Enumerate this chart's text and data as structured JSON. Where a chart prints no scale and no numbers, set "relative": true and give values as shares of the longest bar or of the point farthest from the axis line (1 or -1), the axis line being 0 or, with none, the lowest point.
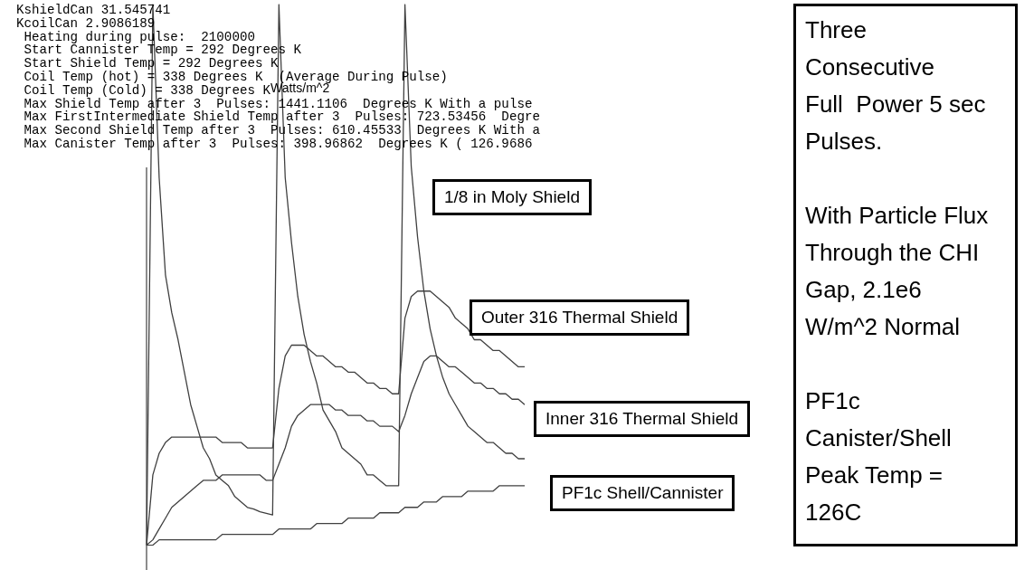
{
  "chart_data": {
    "type": "line",
    "relative": true,
    "marker": "none",
    "grid": false,
    "legend": false,
    "categories": [
      null,
      null,
      null,
      null,
      null,
      null,
      null,
      null,
      null,
      null,
      null,
      null,
      null,
      null,
      null,
      null,
      null,
      null,
      null,
      null,
      null,
      null,
      null,
      null,
      null,
      null,
      null,
      null,
      null,
      null,
      null,
      null,
      null,
      null,
      null,
      null,
      null,
      null,
      null,
      null,
      null,
      null,
      null,
      null,
      null,
      null,
      null,
      null,
      null,
      null,
      null,
      null,
      null,
      null,
      null,
      null,
      null,
      null,
      null,
      null,
      null
    ],
    "series": [
      {
        "name": "1/8 in Moly Shield",
        "color": "#404040",
        "values": [
          0,
          1.0,
          0.68,
          0.5,
          0.43,
          0.38,
          0.32,
          0.26,
          0.22,
          0.18,
          0.16,
          0.13,
          0.12,
          0.11,
          0.09,
          0.08,
          0.07,
          0.067,
          0.062,
          0.059,
          0.056,
          1.0,
          0.68,
          0.56,
          0.46,
          0.39,
          0.34,
          0.3,
          0.25,
          0.23,
          0.21,
          0.18,
          0.17,
          0.16,
          0.15,
          0.13,
          0.13,
          0.12,
          0.11,
          0.11,
          0.11,
          1.0,
          0.7,
          0.57,
          0.47,
          0.4,
          0.35,
          0.31,
          0.28,
          0.26,
          0.24,
          0.22,
          0.21,
          0.2,
          0.19,
          0.19,
          0.18,
          0.17,
          0.17,
          0.16,
          0.16
        ]
      },
      {
        "name": "Outer 316 Thermal Shield",
        "color": "#404040",
        "values": [
          0,
          0.13,
          0.17,
          0.19,
          0.2,
          0.2,
          0.2,
          0.2,
          0.2,
          0.2,
          0.2,
          0.2,
          0.19,
          0.19,
          0.19,
          0.19,
          0.18,
          0.18,
          0.18,
          0.18,
          0.18,
          0.29,
          0.35,
          0.37,
          0.37,
          0.37,
          0.36,
          0.35,
          0.35,
          0.34,
          0.33,
          0.33,
          0.32,
          0.32,
          0.31,
          0.3,
          0.3,
          0.29,
          0.29,
          0.28,
          0.28,
          0.42,
          0.46,
          0.47,
          0.47,
          0.47,
          0.46,
          0.45,
          0.44,
          0.42,
          0.41,
          0.4,
          0.38,
          0.38,
          0.37,
          0.36,
          0.36,
          0.35,
          0.34,
          0.33,
          0.33
        ]
      },
      {
        "name": "Inner 316 Thermal Shield",
        "color": "#404040",
        "values": [
          0,
          0.01,
          0.03,
          0.05,
          0.07,
          0.08,
          0.09,
          0.1,
          0.11,
          0.12,
          0.12,
          0.12,
          0.13,
          0.13,
          0.13,
          0.13,
          0.13,
          0.13,
          0.13,
          0.12,
          0.12,
          0.15,
          0.18,
          0.22,
          0.24,
          0.25,
          0.26,
          0.26,
          0.26,
          0.26,
          0.25,
          0.25,
          0.24,
          0.24,
          0.24,
          0.23,
          0.23,
          0.22,
          0.22,
          0.22,
          0.21,
          0.24,
          0.28,
          0.31,
          0.34,
          0.35,
          0.35,
          0.34,
          0.33,
          0.33,
          0.32,
          0.31,
          0.3,
          0.3,
          0.29,
          0.29,
          0.28,
          0.28,
          0.27,
          0.27,
          0.26
        ]
      },
      {
        "name": "PF1c Shell/Cannister",
        "color": "#404040",
        "values": [
          0,
          0,
          0.01,
          0.01,
          0.01,
          0.01,
          0.01,
          0.01,
          0.01,
          0.01,
          0.01,
          0.01,
          0.02,
          0.02,
          0.02,
          0.02,
          0.02,
          0.02,
          0.02,
          0.02,
          0.02,
          0.03,
          0.03,
          0.03,
          0.03,
          0.03,
          0.03,
          0.04,
          0.04,
          0.04,
          0.04,
          0.04,
          0.05,
          0.05,
          0.05,
          0.05,
          0.05,
          0.06,
          0.06,
          0.06,
          0.06,
          0.07,
          0.07,
          0.07,
          0.08,
          0.08,
          0.08,
          0.09,
          0.09,
          0.09,
          0.09,
          0.1,
          0.1,
          0.1,
          0.1,
          0.1,
          0.11,
          0.11,
          0.11,
          0.11,
          0.11
        ]
      }
    ],
    "annotations": [
      "KshieldCan 31.545741",
      "KcoilCan 2.9086189",
      " Heating during pulse:  2100000",
      " Start Cannister Temp = 292 Degrees K",
      " Start Shield Temp = 292 Degrees K",
      " Coil Temp (hot) = 338 Degrees K  (Average During Pulse)",
      " Coil Temp (Cold) = 338 Degrees K",
      " Max Shield Temp after 3  Pulses: 1441.1106  Degrees K With a pulse",
      " Max FirstIntermediate Shield Temp after 3  Pulses: 723.53456  Degre",
      " Max Second Shield Temp after 3  Pulses: 610.45533  Degrees K With a",
      " Max Canister Temp after 3  Pulses: 398.96862  Degrees K ( 126.9686",
      "Watts/m^2",
      "Three",
      "Consecutive",
      "Full  Power 5 sec",
      "Pulses.",
      "With Particle Flux",
      "Through the CHI",
      "Gap, 2.1e6",
      "W/m^2 Normal",
      "PF1c",
      "Canister/Shell",
      "Peak Temp =",
      "126C"
    ]
  }
}
